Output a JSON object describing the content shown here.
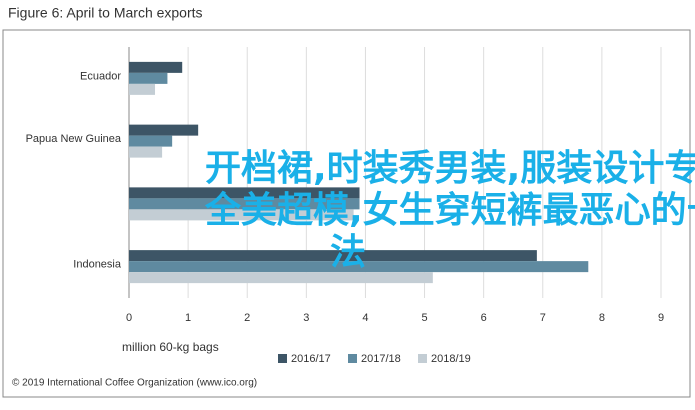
{
  "chart_data": {
    "type": "hbar",
    "title": "Figure 6: April to March exports",
    "categories": [
      "Ecuador",
      "Papua New Guinea",
      null,
      "Indonesia"
    ],
    "series": [
      {
        "name": "2016/17",
        "color": "#3d5566",
        "values": [
          0.9,
          1.17,
          3.9,
          6.9
        ]
      },
      {
        "name": "2017/18",
        "color": "#5f8aa0",
        "values": [
          0.65,
          0.73,
          3.9,
          7.77
        ]
      },
      {
        "name": "2018/19",
        "color": "#c3cdd4",
        "values": [
          0.44,
          0.56,
          3.8,
          5.14
        ]
      }
    ],
    "xlim": [
      0,
      9
    ],
    "xticks": [
      0,
      1,
      2,
      3,
      4,
      5,
      6,
      7,
      8,
      9
    ],
    "grid": true,
    "xlabel": "million 60-kg bags",
    "legend": "bottom",
    "source": "© 2019 International Coffee Organization (www.ico.org)"
  },
  "overlay_text": [
    "开档裙,时装秀男装,服装设计专业,",
    "全美超模,女生穿短裤最恶心的十种穿",
    "法"
  ]
}
